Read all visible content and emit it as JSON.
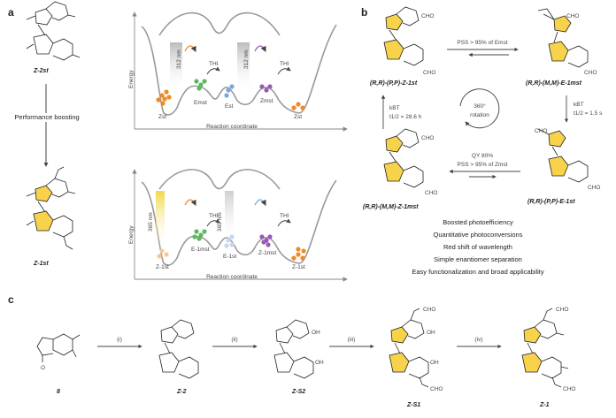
{
  "panels": {
    "a": "a",
    "b": "b",
    "c": "c"
  },
  "panel_a": {
    "left_top_label": "Z-2st",
    "arrow_label": "Performance boosting",
    "left_bottom_label": "Z-1st",
    "top_plot": {
      "y_label": "Energy",
      "x_label": "Reaction coordinate",
      "uv_labels": [
        "312 nm",
        "312 nm"
      ],
      "thi_labels": [
        "THI",
        "THI"
      ],
      "state_labels": [
        "Zst",
        "Emst",
        "Est",
        "Zmst",
        "Zst"
      ]
    },
    "bottom_plot": {
      "y_label": "Energy",
      "x_label": "Reaction coordinate",
      "uv_labels": [
        "365 nm",
        "365 nm"
      ],
      "thi_labels": [
        "THI",
        "THI"
      ],
      "state_labels": [
        "Z-1st",
        "E-1mst",
        "E-1st",
        "Z-1mst",
        "Z-1st"
      ]
    }
  },
  "panel_b": {
    "mol_tl": "(R,R)-(P,P)-Z-1st",
    "mol_tr": "(R,R)-(M,M)-E-1mst",
    "mol_br": "(R,R)-(P,P)-E-1st",
    "mol_bl": "(R,R)-(M,M)-Z-1mst",
    "top_arrow": "PSS > 95% of Emst",
    "right_arrow_1": "kBT",
    "right_arrow_2": "t1/2 = 1.5 s",
    "bottom_arrow_1": "QY 80%",
    "bottom_arrow_2": "PSS > 95% of Zmst",
    "left_arrow_1": "kBT",
    "left_arrow_2": "t1/2 = 28.6 h",
    "center_1": "360°",
    "center_2": "rotation",
    "cho": "CHO",
    "features": [
      "Boosted photoefficiency",
      "Quantitative photoconversions",
      "Red shift of wavelength",
      "Simple enantiomer separation",
      "Easy functionalization and broad applicability"
    ]
  },
  "panel_c": {
    "steps": [
      "(i)",
      "(ii)",
      "(iii)",
      "(iv)"
    ],
    "compounds": [
      "8",
      "Z-2",
      "Z-S2",
      "Z-S1",
      "Z-1"
    ],
    "oh": "OH",
    "cho": "CHO",
    "ketone_o": "O"
  },
  "colors": {
    "ring_yellow": "#f7d24a",
    "orange": "#f08a24",
    "green": "#5cb85c",
    "blue": "#7aa6d8",
    "purple": "#9b59b6",
    "uv_gray": "#bdbdbd",
    "uv_yellow": "#f2d84a"
  }
}
